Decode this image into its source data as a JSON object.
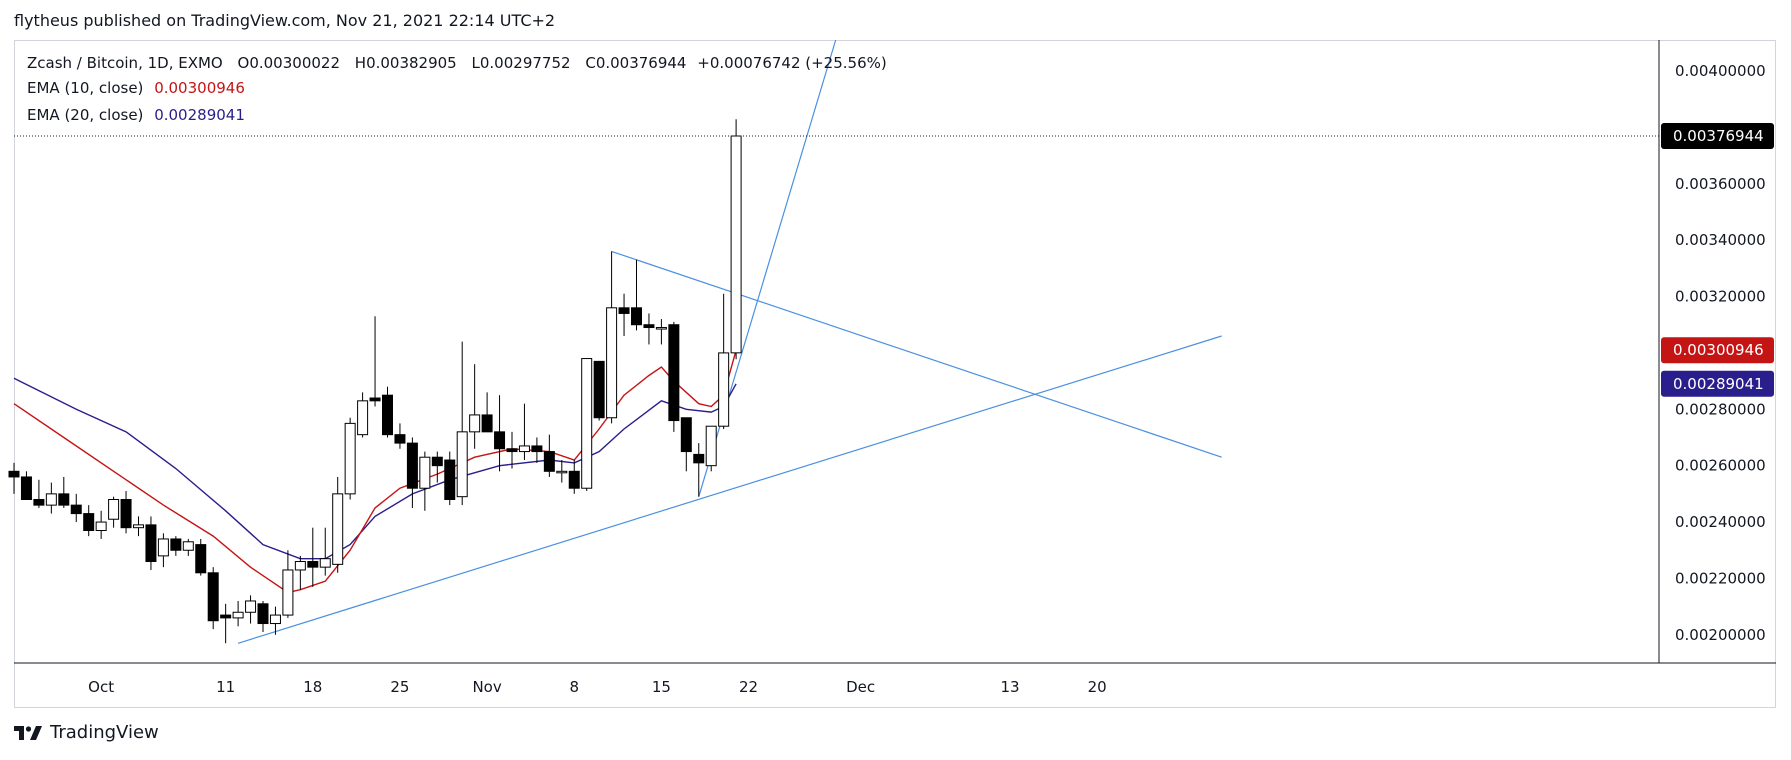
{
  "published": "flytheus published on TradingView.com, Nov 21, 2021 22:14 UTC+2",
  "brand": "TradingView",
  "colors": {
    "ema10": "#c41414",
    "ema20": "#2a1e8c",
    "trendline": "#4a90e2",
    "last_price_bg": "#000000",
    "candle_up_fill": "#ffffff",
    "candle_down_fill": "#000000",
    "grid_border": "#d1d4dc"
  },
  "legend": {
    "symbol": "Zcash / Bitcoin, 1D, EXMO",
    "o_label": "O",
    "o_value": "0.00300022",
    "h_label": "H",
    "h_value": "0.00382905",
    "l_label": "L",
    "l_value": "0.00297752",
    "c_label": "C",
    "c_value": "0.00376944",
    "change": "+0.00076742 (+25.56%)",
    "ema10_label": "EMA (10, close)",
    "ema10_value": "0.00300946",
    "ema20_label": "EMA (20, close)",
    "ema20_value": "0.00289041"
  },
  "chart_data": {
    "type": "candlestick",
    "y_ticks": [
      "0.00200000",
      "0.00220000",
      "0.00240000",
      "0.00260000",
      "0.00280000",
      "0.00320000",
      "0.00340000",
      "0.00360000",
      "0.00400000"
    ],
    "ylim": [
      0.0019,
      0.00411
    ],
    "x_ticks": [
      "Oct",
      "11",
      "18",
      "25",
      "Nov",
      "8",
      "15",
      "22",
      "Dec",
      "13",
      "20"
    ],
    "price_badges": [
      {
        "value": "0.00376944",
        "kind": "last"
      },
      {
        "value": "0.00300946",
        "kind": "ema10"
      },
      {
        "value": "0.00289041",
        "kind": "ema20"
      }
    ],
    "candles": [
      {
        "d": "2021-09-24",
        "o": 0.00258,
        "h": 0.00261,
        "l": 0.0025,
        "c": 0.00256
      },
      {
        "d": "2021-09-25",
        "o": 0.00256,
        "h": 0.00258,
        "l": 0.00248,
        "c": 0.00248
      },
      {
        "d": "2021-09-26",
        "o": 0.00248,
        "h": 0.00255,
        "l": 0.00245,
        "c": 0.00246
      },
      {
        "d": "2021-09-27",
        "o": 0.00246,
        "h": 0.00254,
        "l": 0.00243,
        "c": 0.0025
      },
      {
        "d": "2021-09-28",
        "o": 0.0025,
        "h": 0.00256,
        "l": 0.00245,
        "c": 0.00246
      },
      {
        "d": "2021-09-29",
        "o": 0.00246,
        "h": 0.0025,
        "l": 0.0024,
        "c": 0.00243
      },
      {
        "d": "2021-09-30",
        "o": 0.00243,
        "h": 0.00246,
        "l": 0.00235,
        "c": 0.00237
      },
      {
        "d": "2021-10-01",
        "o": 0.00237,
        "h": 0.00244,
        "l": 0.00234,
        "c": 0.0024
      },
      {
        "d": "2021-10-02",
        "o": 0.00241,
        "h": 0.00249,
        "l": 0.00238,
        "c": 0.00248
      },
      {
        "d": "2021-10-03",
        "o": 0.00248,
        "h": 0.00251,
        "l": 0.00236,
        "c": 0.00238
      },
      {
        "d": "2021-10-04",
        "o": 0.00238,
        "h": 0.00242,
        "l": 0.00235,
        "c": 0.00239
      },
      {
        "d": "2021-10-05",
        "o": 0.00239,
        "h": 0.00242,
        "l": 0.00223,
        "c": 0.00226
      },
      {
        "d": "2021-10-06",
        "o": 0.00228,
        "h": 0.00236,
        "l": 0.00224,
        "c": 0.00234
      },
      {
        "d": "2021-10-07",
        "o": 0.00234,
        "h": 0.00235,
        "l": 0.00228,
        "c": 0.0023
      },
      {
        "d": "2021-10-08",
        "o": 0.0023,
        "h": 0.00234,
        "l": 0.00228,
        "c": 0.00233
      },
      {
        "d": "2021-10-09",
        "o": 0.00232,
        "h": 0.00234,
        "l": 0.00221,
        "c": 0.00222
      },
      {
        "d": "2021-10-10",
        "o": 0.00222,
        "h": 0.00224,
        "l": 0.00202,
        "c": 0.00205
      },
      {
        "d": "2021-10-11",
        "o": 0.00207,
        "h": 0.00211,
        "l": 0.00197,
        "c": 0.00206
      },
      {
        "d": "2021-10-12",
        "o": 0.00206,
        "h": 0.00212,
        "l": 0.00203,
        "c": 0.00208
      },
      {
        "d": "2021-10-13",
        "o": 0.00208,
        "h": 0.00214,
        "l": 0.00204,
        "c": 0.00212
      },
      {
        "d": "2021-10-14",
        "o": 0.00211,
        "h": 0.00212,
        "l": 0.00201,
        "c": 0.00204
      },
      {
        "d": "2021-10-15",
        "o": 0.00204,
        "h": 0.0021,
        "l": 0.002,
        "c": 0.00207
      },
      {
        "d": "2021-10-16",
        "o": 0.00207,
        "h": 0.0023,
        "l": 0.00206,
        "c": 0.00223
      },
      {
        "d": "2021-10-17",
        "o": 0.00223,
        "h": 0.00228,
        "l": 0.00216,
        "c": 0.00226
      },
      {
        "d": "2021-10-18",
        "o": 0.00226,
        "h": 0.00238,
        "l": 0.00217,
        "c": 0.00224
      },
      {
        "d": "2021-10-19",
        "o": 0.00224,
        "h": 0.00238,
        "l": 0.00221,
        "c": 0.00227
      },
      {
        "d": "2021-10-20",
        "o": 0.00225,
        "h": 0.00256,
        "l": 0.00222,
        "c": 0.0025
      },
      {
        "d": "2021-10-21",
        "o": 0.0025,
        "h": 0.00277,
        "l": 0.00248,
        "c": 0.00275
      },
      {
        "d": "2021-10-22",
        "o": 0.00271,
        "h": 0.00286,
        "l": 0.0027,
        "c": 0.00283
      },
      {
        "d": "2021-10-23",
        "o": 0.00284,
        "h": 0.00313,
        "l": 0.00281,
        "c": 0.00283
      },
      {
        "d": "2021-10-24",
        "o": 0.00285,
        "h": 0.00288,
        "l": 0.0027,
        "c": 0.00271
      },
      {
        "d": "2021-10-25",
        "o": 0.00271,
        "h": 0.00275,
        "l": 0.00266,
        "c": 0.00268
      },
      {
        "d": "2021-10-26",
        "o": 0.00268,
        "h": 0.0027,
        "l": 0.00245,
        "c": 0.00252
      },
      {
        "d": "2021-10-27",
        "o": 0.00252,
        "h": 0.00265,
        "l": 0.00244,
        "c": 0.00263
      },
      {
        "d": "2021-10-28",
        "o": 0.00263,
        "h": 0.00265,
        "l": 0.00254,
        "c": 0.0026
      },
      {
        "d": "2021-10-29",
        "o": 0.00262,
        "h": 0.00265,
        "l": 0.00246,
        "c": 0.00248
      },
      {
        "d": "2021-10-30",
        "o": 0.00249,
        "h": 0.00304,
        "l": 0.00246,
        "c": 0.00272
      },
      {
        "d": "2021-10-31",
        "o": 0.00272,
        "h": 0.00296,
        "l": 0.00266,
        "c": 0.00278
      },
      {
        "d": "2021-11-01",
        "o": 0.00278,
        "h": 0.00286,
        "l": 0.00272,
        "c": 0.00272
      },
      {
        "d": "2021-11-02",
        "o": 0.00272,
        "h": 0.00285,
        "l": 0.00258,
        "c": 0.00266
      },
      {
        "d": "2021-11-03",
        "o": 0.00266,
        "h": 0.00272,
        "l": 0.00259,
        "c": 0.00265
      },
      {
        "d": "2021-11-04",
        "o": 0.00265,
        "h": 0.00282,
        "l": 0.00262,
        "c": 0.00267
      },
      {
        "d": "2021-11-05",
        "o": 0.00267,
        "h": 0.0027,
        "l": 0.00261,
        "c": 0.00265
      },
      {
        "d": "2021-11-06",
        "o": 0.00265,
        "h": 0.00271,
        "l": 0.00256,
        "c": 0.00258
      },
      {
        "d": "2021-11-07",
        "o": 0.00258,
        "h": 0.00262,
        "l": 0.00254,
        "c": 0.00258
      },
      {
        "d": "2021-11-08",
        "o": 0.00258,
        "h": 0.00262,
        "l": 0.0025,
        "c": 0.00252
      },
      {
        "d": "2021-11-09",
        "o": 0.00252,
        "h": 0.00298,
        "l": 0.00251,
        "c": 0.00298
      },
      {
        "d": "2021-11-10",
        "o": 0.00297,
        "h": 0.00297,
        "l": 0.00276,
        "c": 0.00277
      },
      {
        "d": "2021-11-11",
        "o": 0.00277,
        "h": 0.00336,
        "l": 0.00275,
        "c": 0.00316
      },
      {
        "d": "2021-11-12",
        "o": 0.00316,
        "h": 0.00321,
        "l": 0.00306,
        "c": 0.00314
      },
      {
        "d": "2021-11-13",
        "o": 0.00316,
        "h": 0.00333,
        "l": 0.00308,
        "c": 0.0031
      },
      {
        "d": "2021-11-14",
        "o": 0.0031,
        "h": 0.00314,
        "l": 0.00303,
        "c": 0.00309
      },
      {
        "d": "2021-11-15",
        "o": 0.00309,
        "h": 0.00312,
        "l": 0.00303,
        "c": 0.00309
      },
      {
        "d": "2021-11-16",
        "o": 0.0031,
        "h": 0.00311,
        "l": 0.00272,
        "c": 0.00276
      },
      {
        "d": "2021-11-17",
        "o": 0.00277,
        "h": 0.00277,
        "l": 0.00258,
        "c": 0.00265
      },
      {
        "d": "2021-11-18",
        "o": 0.00264,
        "h": 0.00268,
        "l": 0.00249,
        "c": 0.00261
      },
      {
        "d": "2021-11-19",
        "o": 0.0026,
        "h": 0.00273,
        "l": 0.00258,
        "c": 0.00274
      },
      {
        "d": "2021-11-20",
        "o": 0.00274,
        "h": 0.00321,
        "l": 0.00273,
        "c": 0.003
      },
      {
        "d": "2021-11-21",
        "o": 0.00300022,
        "h": 0.00382905,
        "l": 0.00297752,
        "c": 0.00376944
      }
    ],
    "ema10": [
      [
        "2021-09-24",
        0.00282
      ],
      [
        "2021-09-28",
        0.0027
      ],
      [
        "2021-10-02",
        0.00258
      ],
      [
        "2021-10-06",
        0.00246
      ],
      [
        "2021-10-10",
        0.00235
      ],
      [
        "2021-10-13",
        0.00224
      ],
      [
        "2021-10-16",
        0.00215
      ],
      [
        "2021-10-17",
        0.00216
      ],
      [
        "2021-10-19",
        0.00219
      ],
      [
        "2021-10-21",
        0.0023
      ],
      [
        "2021-10-23",
        0.00245
      ],
      [
        "2021-10-25",
        0.00252
      ],
      [
        "2021-10-28",
        0.00257
      ],
      [
        "2021-10-31",
        0.00263
      ],
      [
        "2021-11-03",
        0.00266
      ],
      [
        "2021-11-06",
        0.00265
      ],
      [
        "2021-11-08",
        0.00262
      ],
      [
        "2021-11-10",
        0.00273
      ],
      [
        "2021-11-12",
        0.00285
      ],
      [
        "2021-11-14",
        0.00292
      ],
      [
        "2021-11-15",
        0.00295
      ],
      [
        "2021-11-16",
        0.0029
      ],
      [
        "2021-11-18",
        0.00282
      ],
      [
        "2021-11-19",
        0.00281
      ],
      [
        "2021-11-20",
        0.00285
      ],
      [
        "2021-11-21",
        0.00300946
      ]
    ],
    "ema20": [
      [
        "2021-09-24",
        0.00291
      ],
      [
        "2021-09-29",
        0.0028
      ],
      [
        "2021-10-03",
        0.00272
      ],
      [
        "2021-10-07",
        0.00259
      ],
      [
        "2021-10-11",
        0.00244
      ],
      [
        "2021-10-14",
        0.00232
      ],
      [
        "2021-10-17",
        0.00227
      ],
      [
        "2021-10-19",
        0.00227
      ],
      [
        "2021-10-21",
        0.00232
      ],
      [
        "2021-10-23",
        0.00242
      ],
      [
        "2021-10-26",
        0.0025
      ],
      [
        "2021-10-29",
        0.00255
      ],
      [
        "2021-11-02",
        0.0026
      ],
      [
        "2021-11-06",
        0.00262
      ],
      [
        "2021-11-08",
        0.00261
      ],
      [
        "2021-11-10",
        0.00265
      ],
      [
        "2021-11-12",
        0.00273
      ],
      [
        "2021-11-15",
        0.00283
      ],
      [
        "2021-11-17",
        0.0028
      ],
      [
        "2021-11-19",
        0.00279
      ],
      [
        "2021-11-20",
        0.00281
      ],
      [
        "2021-11-21",
        0.00289041
      ]
    ],
    "trendlines": [
      {
        "from": [
          "2021-10-12",
          0.00197
        ],
        "to": [
          "2021-12-30",
          0.00306
        ]
      },
      {
        "from": [
          "2021-11-18",
          0.00249
        ],
        "to": [
          "2021-11-29",
          0.00411
        ]
      },
      {
        "from": [
          "2021-11-11",
          0.00336
        ],
        "to": [
          "2021-12-30",
          0.00263
        ]
      }
    ]
  }
}
